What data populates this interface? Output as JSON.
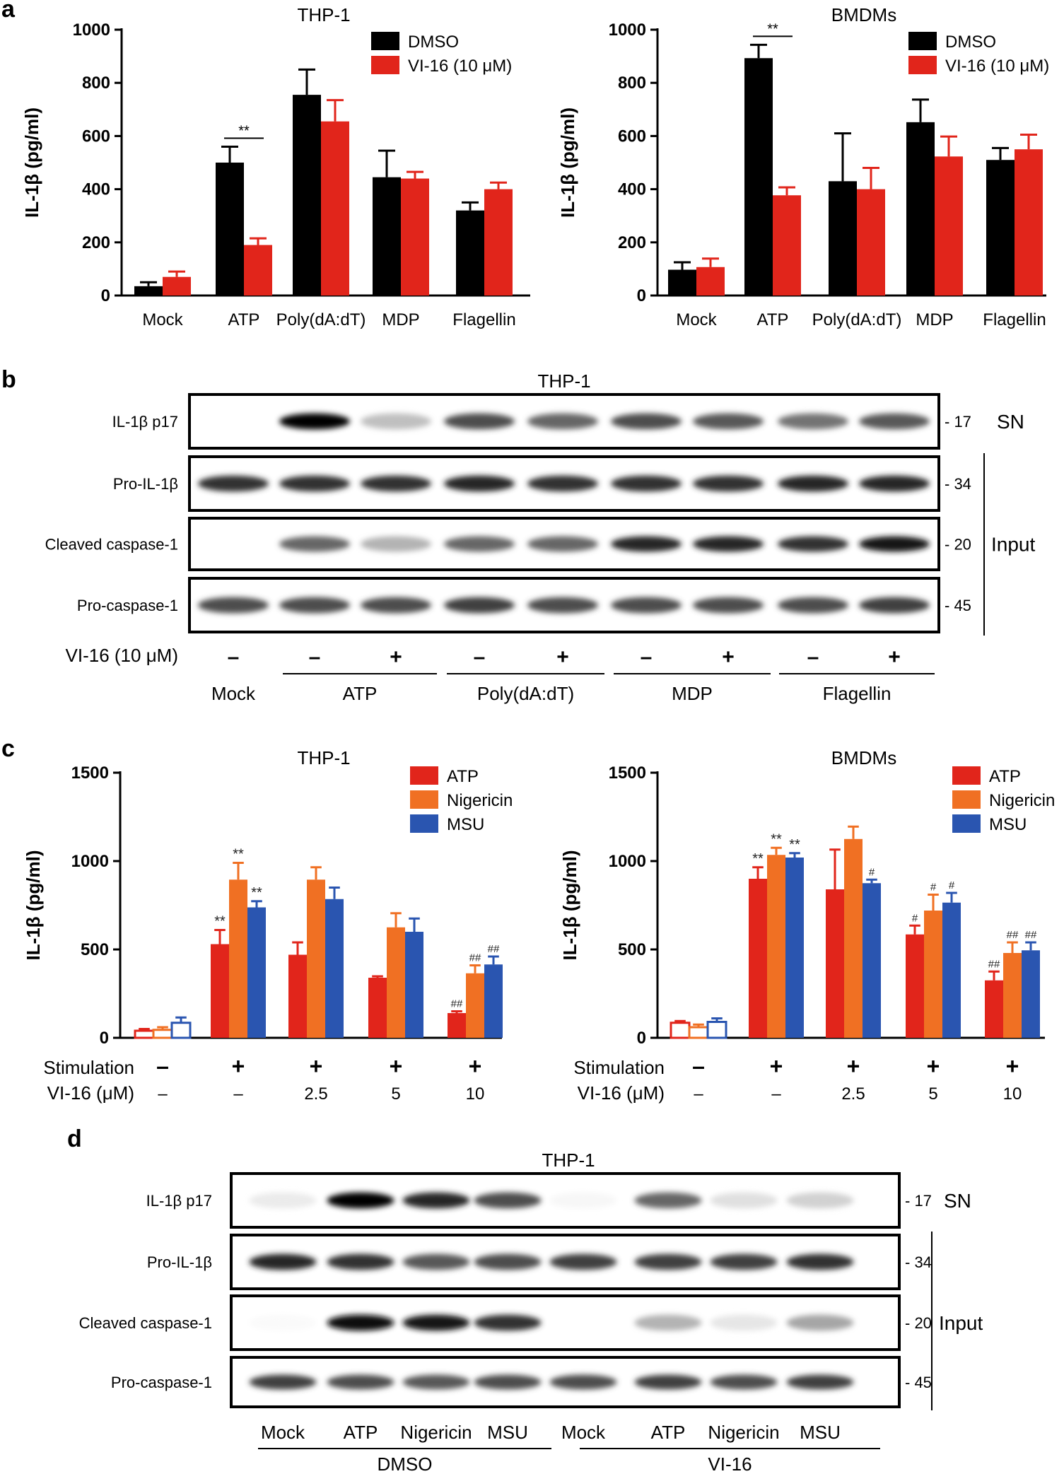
{
  "panels": {
    "a": "a",
    "b": "b",
    "c": "c",
    "d": "d"
  },
  "colors": {
    "dmso": "#000000",
    "vi16": "#e1251b",
    "atp": "#e1251b",
    "nigericin": "#f07023",
    "msu": "#2a55b0"
  },
  "chart_data": [
    {
      "type": "bar",
      "title": "THP-1",
      "ylabel": "IL-1β (pg/ml)",
      "categories": [
        "Mock",
        "ATP",
        "Poly(dA:dT)",
        "MDP",
        "Flagellin"
      ],
      "ylim": [
        0,
        1000
      ],
      "yticks": [
        "0",
        "200",
        "400",
        "600",
        "800",
        "1000"
      ],
      "series": [
        {
          "name": "DMSO",
          "values": [
            35,
            500,
            755,
            445,
            320
          ],
          "errors": [
            15,
            60,
            95,
            100,
            30
          ]
        },
        {
          "name": "VI-16 (10 μM)",
          "values": [
            70,
            190,
            655,
            440,
            400
          ],
          "errors": [
            20,
            25,
            80,
            25,
            25
          ]
        }
      ],
      "annotations": [
        {
          "category": "ATP",
          "text": "**"
        }
      ]
    },
    {
      "type": "bar",
      "title": "BMDMs",
      "ylabel": "IL-1β (pg/ml)",
      "categories": [
        "Mock",
        "ATP",
        "Poly(dA:dT)",
        "MDP",
        "Flagellin"
      ],
      "ylim": [
        0,
        1000
      ],
      "yticks": [
        "0",
        "200",
        "400",
        "600",
        "800",
        "1000"
      ],
      "series": [
        {
          "name": "DMSO",
          "values": [
            97,
            893,
            430,
            652,
            510
          ],
          "errors": [
            28,
            50,
            180,
            85,
            45
          ]
        },
        {
          "name": "VI-16 (10 μM)",
          "values": [
            107,
            377,
            400,
            523,
            550
          ],
          "errors": [
            32,
            30,
            80,
            75,
            55
          ]
        }
      ],
      "annotations": [
        {
          "category": "ATP",
          "text": "**"
        }
      ]
    },
    {
      "type": "bar",
      "title": "THP-1",
      "ylabel": "IL-1β (pg/ml)",
      "ylim": [
        0,
        1500
      ],
      "yticks": [
        "0",
        "500",
        "1000",
        "1500"
      ],
      "rows": [
        {
          "label": "Stimulation",
          "values": [
            "–",
            "+",
            "+",
            "+",
            "+"
          ]
        },
        {
          "label": "VI-16 (μM)",
          "values": [
            "–",
            "–",
            "2.5",
            "5",
            "10"
          ]
        }
      ],
      "series": [
        {
          "name": "ATP",
          "values": [
            40,
            530,
            470,
            340,
            140
          ],
          "errors": [
            10,
            80,
            70,
            8,
            10
          ],
          "marks": [
            "",
            "**",
            "",
            "",
            "##"
          ]
        },
        {
          "name": "Nigericin",
          "values": [
            45,
            895,
            895,
            625,
            365
          ],
          "errors": [
            15,
            95,
            70,
            80,
            45
          ],
          "marks": [
            "",
            "**",
            "",
            "",
            "##"
          ]
        },
        {
          "name": "MSU",
          "values": [
            85,
            738,
            785,
            600,
            415
          ],
          "errors": [
            30,
            35,
            65,
            75,
            45
          ],
          "marks": [
            "",
            "**",
            "",
            "",
            "##"
          ]
        }
      ]
    },
    {
      "type": "bar",
      "title": "BMDMs",
      "ylabel": "IL-1β (pg/ml)",
      "ylim": [
        0,
        1500
      ],
      "yticks": [
        "0",
        "500",
        "1000",
        "1500"
      ],
      "rows": [
        {
          "label": "Stimulation",
          "values": [
            "–",
            "+",
            "+",
            "+",
            "+"
          ]
        },
        {
          "label": "VI-16 (μM)",
          "values": [
            "–",
            "–",
            "2.5",
            "5",
            "10"
          ]
        }
      ],
      "series": [
        {
          "name": "ATP",
          "values": [
            85,
            900,
            840,
            585,
            325
          ],
          "errors": [
            10,
            65,
            225,
            50,
            50
          ],
          "marks": [
            "",
            "**",
            "",
            "#",
            "##"
          ]
        },
        {
          "name": "Nigericin",
          "values": [
            60,
            1035,
            1125,
            720,
            480
          ],
          "errors": [
            15,
            40,
            70,
            90,
            60
          ],
          "marks": [
            "",
            "**",
            "",
            "#",
            "##"
          ]
        },
        {
          "name": "MSU",
          "values": [
            90,
            1020,
            875,
            765,
            495
          ],
          "errors": [
            20,
            25,
            20,
            55,
            45
          ],
          "marks": [
            "",
            "**",
            "#",
            "#",
            "##"
          ]
        }
      ]
    }
  ],
  "blot_b": {
    "title": "THP-1",
    "rows": [
      {
        "label": "IL-1β p17",
        "mw": "- 17"
      },
      {
        "label": "Pro-IL-1β",
        "mw": "- 34"
      },
      {
        "label": "Cleaved caspase-1",
        "mw": "- 20"
      },
      {
        "label": "Pro-caspase-1",
        "mw": "- 45"
      }
    ],
    "sn_label": "SN",
    "input_label": "Input",
    "treatment_label": "VI-16 (10 μM)",
    "signs": [
      "–",
      "–",
      "+",
      "–",
      "+",
      "–",
      "+",
      "–",
      "+"
    ],
    "groups": [
      "Mock",
      "ATP",
      "Poly(dA:dT)",
      "MDP",
      "Flagellin"
    ],
    "intensities": [
      [
        0.0,
        1.0,
        0.25,
        0.7,
        0.6,
        0.7,
        0.65,
        0.55,
        0.65
      ],
      [
        0.8,
        0.8,
        0.8,
        0.85,
        0.8,
        0.8,
        0.8,
        0.85,
        0.85
      ],
      [
        0.0,
        0.6,
        0.3,
        0.6,
        0.6,
        0.85,
        0.85,
        0.8,
        0.9
      ],
      [
        0.7,
        0.7,
        0.7,
        0.75,
        0.7,
        0.7,
        0.7,
        0.7,
        0.75
      ]
    ]
  },
  "blot_d": {
    "title": "THP-1",
    "rows": [
      {
        "label": "IL-1β p17",
        "mw": "- 17"
      },
      {
        "label": "Pro-IL-1β",
        "mw": "- 34"
      },
      {
        "label": "Cleaved caspase-1",
        "mw": "- 20"
      },
      {
        "label": "Pro-caspase-1",
        "mw": "- 45"
      }
    ],
    "sn_label": "SN",
    "input_label": "Input",
    "lanes": [
      "Mock",
      "ATP",
      "Nigericin",
      "MSU",
      "Mock",
      "ATP",
      "Nigericin",
      "MSU"
    ],
    "groups": [
      "DMSO",
      "VI-16"
    ],
    "intensities": [
      [
        0.08,
        1.0,
        0.85,
        0.7,
        0.03,
        0.6,
        0.12,
        0.18
      ],
      [
        0.85,
        0.8,
        0.65,
        0.7,
        0.75,
        0.75,
        0.75,
        0.8
      ],
      [
        0.02,
        0.95,
        0.9,
        0.8,
        0.0,
        0.3,
        0.1,
        0.35
      ],
      [
        0.75,
        0.7,
        0.65,
        0.7,
        0.7,
        0.75,
        0.7,
        0.75
      ]
    ]
  }
}
